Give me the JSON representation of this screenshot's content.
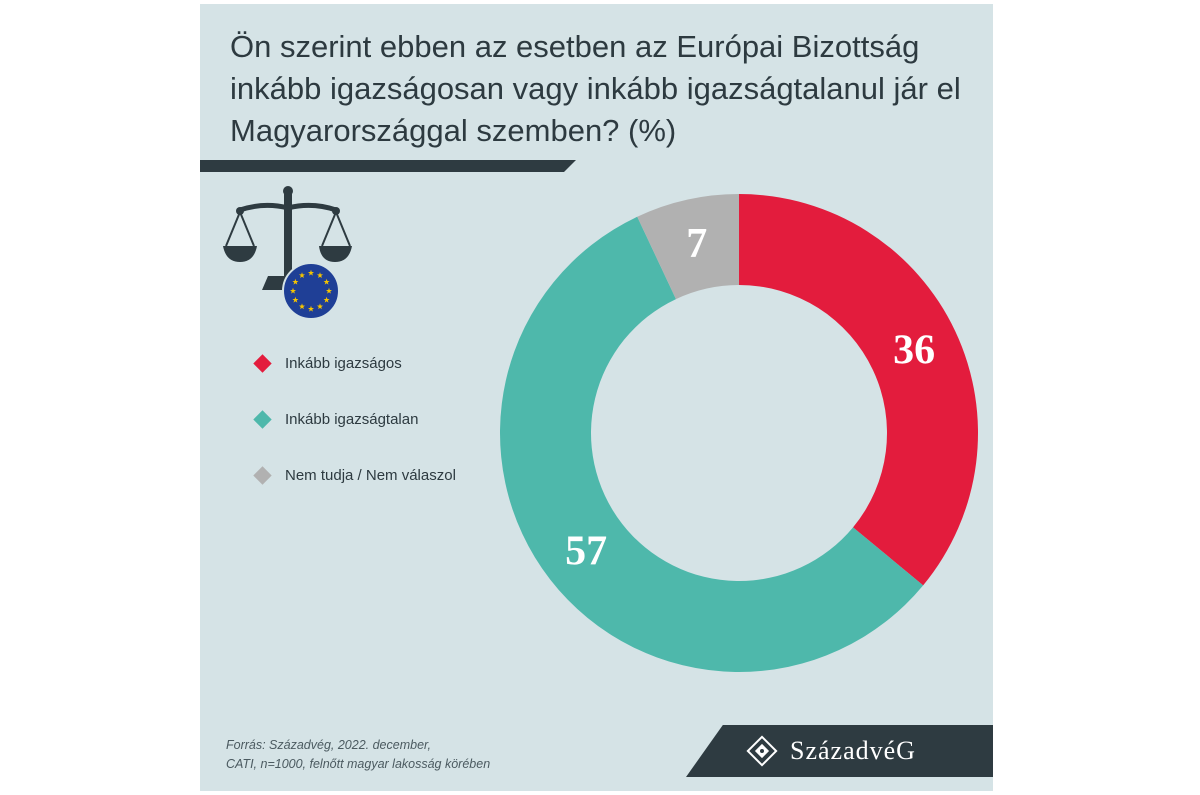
{
  "title": "Ön szerint ebben az esetben az Európai Bizottság inkább igazságosan vagy inkább igazságtalanul jár el Magyarországgal szemben? (%)",
  "icons": {
    "scales": "scales-of-justice-icon",
    "flag": "eu-flag-icon",
    "logo": "szazadveg-logo-mark-icon"
  },
  "legend": [
    {
      "label": "Inkább igazságos",
      "color": "#e31c3d"
    },
    {
      "label": "Inkább igazságtalan",
      "color": "#4eb8ab"
    },
    {
      "label": "Nem tudja / Nem válaszol",
      "color": "#b1b1b1"
    }
  ],
  "chart_data": {
    "type": "pie",
    "donut": true,
    "title": "Ön szerint ebben az esetben az Európai Bizottság inkább igazságosan vagy inkább igazságtalanul jár el Magyarországgal szemben? (%)",
    "categories": [
      "Inkább igazságos",
      "Inkább igazságtalan",
      "Nem tudja / Nem válaszol"
    ],
    "values": [
      36,
      57,
      7
    ],
    "colors": [
      "#e31c3d",
      "#4eb8ab",
      "#b1b1b1"
    ],
    "data_labels": [
      "36",
      "57",
      "7"
    ]
  },
  "source": {
    "line1": "Forrás: Századvég, 2022. december,",
    "line2": "CATI, n=1000, felnőtt magyar lakosság körében"
  },
  "logo": {
    "text": "SzázadvéG"
  },
  "colors": {
    "background": "#d5e3e6",
    "dark": "#2e3b41",
    "text": "#2d3a40"
  }
}
